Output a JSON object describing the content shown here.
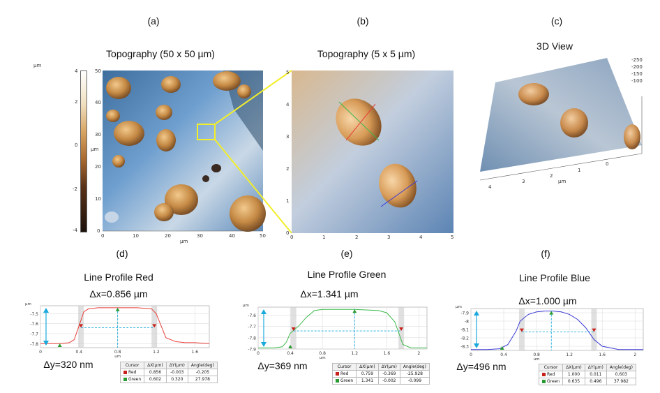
{
  "panels": {
    "a": {
      "label": "(a)",
      "title": "Topography (50 x 50 µm)",
      "unit": "µm",
      "colorbar_ticks": [
        "4",
        "2",
        "0",
        "-2",
        "-4"
      ],
      "y_ticks": [
        "50",
        "40",
        "30",
        "20",
        "10",
        "0"
      ],
      "x_ticks": [
        "0",
        "10",
        "20",
        "30",
        "40",
        "50"
      ],
      "x_unit": "µm",
      "y_unit": "µm"
    },
    "b": {
      "label": "(b)",
      "title": "Topography (5 x 5 µm)",
      "y_ticks": [
        "5",
        "4",
        "3",
        "2",
        "1",
        "0"
      ],
      "x_ticks": [
        "0",
        "1",
        "2",
        "3",
        "4",
        "5"
      ]
    },
    "c": {
      "label": "(c)",
      "title": "3D View",
      "x_ticks": [
        "4",
        "3",
        "2",
        "1",
        "0"
      ],
      "x_unit": "µm",
      "z_ticks": [
        "-250",
        "-200",
        "-150",
        "-100"
      ]
    },
    "d": {
      "label": "(d)",
      "title": "Line Profile Red",
      "dx": "Δx=0.856 µm",
      "dy": "Δy=320 nm"
    },
    "e": {
      "label": "(e)",
      "title": "Line Profile Green",
      "dx": "Δx=1.341 µm",
      "dy": "Δy=369 nm"
    },
    "f": {
      "label": "(f)",
      "title": "Line Profile Blue",
      "dx": "Δx=1.000 µm",
      "dy": "Δy=496 nm"
    }
  },
  "tables": {
    "headers": [
      "Cursor",
      "ΔX(µm)",
      "ΔY(µm)",
      "Angle(deg)"
    ],
    "d": [
      [
        "Red",
        "0.856",
        "-0.003",
        "-0.205"
      ],
      [
        "Green",
        "0.602",
        "0.320",
        "27.978"
      ]
    ],
    "e": [
      [
        "Red",
        "0.759",
        "-0.369",
        "-25.928"
      ],
      [
        "Green",
        "1.341",
        "-0.002",
        "-0.099"
      ]
    ],
    "f": [
      [
        "Red",
        "1.000",
        "0.011",
        "0.603"
      ],
      [
        "Green",
        "0.635",
        "0.496",
        "37.982"
      ]
    ]
  },
  "colors": {
    "red": "#e8403a",
    "green": "#3cb84a",
    "blue": "#3a3ad6",
    "bluegray": "#5b8fc8",
    "bronze": "#b87a3a",
    "yellow": "#f2ee2a",
    "cyan": "#1aa9dc"
  },
  "chart_data": [
    {
      "type": "line",
      "title": "Line Profile Red",
      "ylabel": "µm",
      "xlabel": "µm",
      "x_ticks": [
        "0",
        "0.4",
        "0.8",
        "1.2",
        "1.6"
      ],
      "y_ticks": [
        "-7.5",
        "-7.6",
        "-7.7",
        "-7.8"
      ],
      "xlim": [
        0,
        1.75
      ],
      "ylim": [
        -7.84,
        -7.42
      ],
      "series": [
        {
          "x": [
            0,
            0.1,
            0.2,
            0.3,
            0.35,
            0.4,
            0.45,
            0.5,
            0.6,
            0.8,
            1.0,
            1.15,
            1.2,
            1.25,
            1.3,
            1.4,
            1.5,
            1.6,
            1.75
          ],
          "y": [
            -7.8,
            -7.8,
            -7.8,
            -7.79,
            -7.76,
            -7.62,
            -7.48,
            -7.45,
            -7.44,
            -7.44,
            -7.44,
            -7.45,
            -7.5,
            -7.62,
            -7.74,
            -7.78,
            -7.79,
            -7.79,
            -7.8
          ]
        }
      ]
    },
    {
      "type": "line",
      "title": "Line Profile Green",
      "ylabel": "µm",
      "xlabel": "µm",
      "x_ticks": [
        "0",
        "0.4",
        "0.8",
        "1.2",
        "1.6",
        "2"
      ],
      "y_ticks": [
        "-7.6",
        "-7.7",
        "-7.8",
        "-7.9"
      ],
      "xlim": [
        0,
        2.1
      ],
      "ylim": [
        -7.9,
        -7.53
      ],
      "series": [
        {
          "x": [
            0,
            0.2,
            0.3,
            0.35,
            0.4,
            0.5,
            0.6,
            0.7,
            0.8,
            1.2,
            1.5,
            1.6,
            1.7,
            1.75,
            1.8,
            1.9,
            2.1
          ],
          "y": [
            -7.89,
            -7.89,
            -7.88,
            -7.84,
            -7.76,
            -7.7,
            -7.62,
            -7.56,
            -7.55,
            -7.55,
            -7.56,
            -7.58,
            -7.66,
            -7.76,
            -7.86,
            -7.89,
            -7.89
          ]
        }
      ]
    },
    {
      "type": "line",
      "title": "Line Profile Blue",
      "ylabel": "µm",
      "xlabel": "µm",
      "x_ticks": [
        "0",
        "0.4",
        "0.8",
        "1.2",
        "1.6",
        "2"
      ],
      "y_ticks": [
        "-7.9",
        "-8",
        "-8.1",
        "-8.2",
        "-8.3"
      ],
      "xlim": [
        0,
        2.1
      ],
      "ylim": [
        -8.35,
        -7.85
      ],
      "series": [
        {
          "x": [
            0,
            0.2,
            0.35,
            0.45,
            0.55,
            0.6,
            0.7,
            0.8,
            0.9,
            1.0,
            1.1,
            1.2,
            1.3,
            1.4,
            1.5,
            1.6,
            1.8,
            2.1
          ],
          "y": [
            -8.34,
            -8.34,
            -8.33,
            -8.28,
            -8.12,
            -8.0,
            -7.92,
            -7.89,
            -7.88,
            -7.88,
            -7.89,
            -7.92,
            -7.98,
            -8.08,
            -8.22,
            -8.3,
            -8.34,
            -8.34
          ]
        }
      ]
    }
  ]
}
